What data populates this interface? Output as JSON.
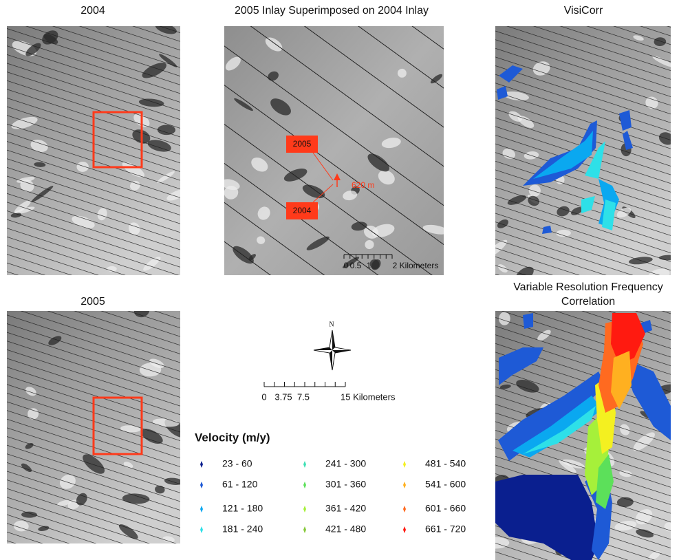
{
  "panels": [
    {
      "title": "2004"
    },
    {
      "title": "2005 Inlay Superimposed on 2004 Inlay"
    },
    {
      "title": "VisiCorr"
    },
    {
      "title": "2005"
    },
    {
      "title": [
        "Variable Resolution Frequency",
        "Correlation"
      ]
    }
  ],
  "inset": {
    "labels": [
      "2005",
      "2004"
    ],
    "offset": "620 m",
    "scale": [
      "0",
      "0.5",
      "1",
      "2 Kilometers"
    ]
  },
  "north": "N",
  "scale": [
    "0",
    "3.75",
    "7.5",
    "15 Kilometers"
  ],
  "legend": {
    "title": "Velocity (m/y)",
    "items": [
      {
        "label": "23 - 60",
        "color": "#0a1f8f"
      },
      {
        "label": "61 - 120",
        "color": "#1e5ad6"
      },
      {
        "label": "121 - 180",
        "color": "#0aa8f0"
      },
      {
        "label": "181 - 240",
        "color": "#2ee0e8"
      },
      {
        "label": "241 - 300",
        "color": "#3ee0b4"
      },
      {
        "label": "301 - 360",
        "color": "#5ce05a"
      },
      {
        "label": "361 - 420",
        "color": "#a6f03a"
      },
      {
        "label": "421 - 480",
        "color": "#86c83a"
      },
      {
        "label": "481 - 540",
        "color": "#f4f020"
      },
      {
        "label": "541 - 600",
        "color": "#ffb020"
      },
      {
        "label": "601 - 660",
        "color": "#ff6a20"
      },
      {
        "label": "661 - 720",
        "color": "#ff1a10"
      }
    ]
  }
}
